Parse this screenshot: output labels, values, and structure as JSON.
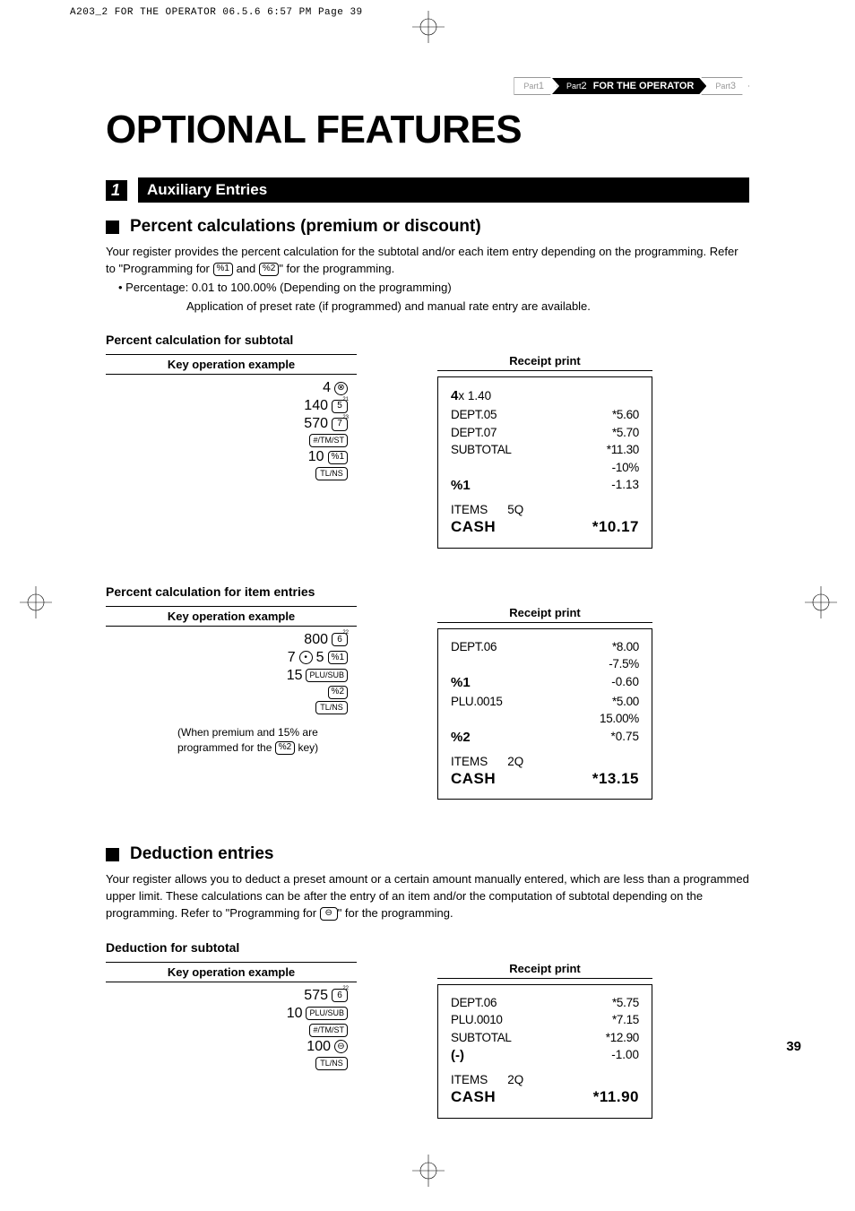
{
  "slug": "A203_2 FOR THE OPERATOR  06.5.6 6:57 PM  Page 39",
  "breadcrumb": {
    "p1": {
      "prefix": "Part",
      "num": "1"
    },
    "p2": {
      "prefix": "Part",
      "num": "2",
      "title": "FOR THE OPERATOR"
    },
    "p3": {
      "prefix": "Part",
      "num": "3"
    }
  },
  "page_title": "OPTIONAL FEATURES",
  "section": {
    "num": "1",
    "title": "Auxiliary Entries"
  },
  "sub1": {
    "heading": "Percent calculations (premium or discount)",
    "body1": "Your register provides the percent calculation for the subtotal and/or each item entry depending on the programming.  Refer to \"Programming for ",
    "body1_mid": " and ",
    "body1_end": "\" for the programming.",
    "bullet": "• Percentage: 0.01 to 100.00% (Depending on the programming)",
    "bullet_sub": "Application of preset rate (if programmed) and manual rate entry are available."
  },
  "labels": {
    "key_op": "Key operation example",
    "receipt": "Receipt print"
  },
  "keys": {
    "pct1": "%1",
    "pct2": "%2",
    "tmst": "#/TM/ST",
    "tlns": "TL/NS",
    "plusub": "PLU/SUB",
    "minus": "⊖",
    "mult": "⊗",
    "dot": "•",
    "d5": "5",
    "d5_sup": "21",
    "d7": "7",
    "d7_sup": "23",
    "d6": "6",
    "d6_sup": "22"
  },
  "ex1": {
    "title": "Percent calculation for subtotal",
    "ops": [
      {
        "num": "4",
        "key_type": "round",
        "key": "mult"
      },
      {
        "num": "140",
        "key_type": "digit",
        "key": "d5",
        "sup": "d5_sup"
      },
      {
        "num": "570",
        "key_type": "digit",
        "key": "d7",
        "sup": "d7_sup"
      },
      {
        "num": "",
        "key_type": "big",
        "key": "tmst"
      },
      {
        "num": "10",
        "key_type": "small",
        "key": "pct1"
      },
      {
        "num": "",
        "key_type": "big",
        "key": "tlns"
      }
    ],
    "receipt": {
      "r0_l": "4",
      "r0_m": "x 1.40",
      "r1_l": "DEPT.05",
      "r1_r": "*5.60",
      "r2_l": "DEPT.07",
      "r2_r": "*5.70",
      "r3_l": "SUBTOTAL",
      "r3_r": "*11.30",
      "r4_r": "-10%",
      "r5_l": "%1",
      "r5_r": "-1.13",
      "items_l": "ITEMS",
      "items_r": "5Q",
      "cash_l": "CASH",
      "cash_r": "*10.17"
    }
  },
  "ex2": {
    "title": "Percent calculation for item entries",
    "ops": [
      {
        "num": "800",
        "key_type": "digit",
        "key": "d6",
        "sup": "d6_sup"
      },
      {
        "num": "7",
        "dot": true,
        "num2": "5",
        "key_type": "small",
        "key": "pct1"
      },
      {
        "num": "15",
        "key_type": "big",
        "key": "plusub"
      },
      {
        "num": "",
        "key_type": "small",
        "key": "pct2"
      },
      {
        "num": "",
        "key_type": "big",
        "key": "tlns"
      }
    ],
    "note1": "(When premium and 15% are",
    "note2_a": "programmed for the ",
    "note2_b": " key)",
    "receipt": {
      "r1_l": "DEPT.06",
      "r1_r": "*8.00",
      "r2_r": "-7.5%",
      "r3_l": "%1",
      "r3_r": "-0.60",
      "r4_l": "PLU.0015",
      "r4_r": "*5.00",
      "r5_r": "15.00%",
      "r6_l": "%2",
      "r6_r": "*0.75",
      "items_l": "ITEMS",
      "items_r": "2Q",
      "cash_l": "CASH",
      "cash_r": "*13.15"
    }
  },
  "sub2": {
    "heading": "Deduction entries",
    "body1": "Your register allows you to deduct a preset amount or a certain amount manually entered, which are less than a programmed upper limit.  These calculations can be after the entry of an item and/or the computation of subtotal depending on the programming.  Refer to \"Programming for ",
    "body1_end": "\" for the programming."
  },
  "ex3": {
    "title": "Deduction for subtotal",
    "ops": [
      {
        "num": "575",
        "key_type": "digit",
        "key": "d6",
        "sup": "d6_sup"
      },
      {
        "num": "10",
        "key_type": "big",
        "key": "plusub"
      },
      {
        "num": "",
        "key_type": "big",
        "key": "tmst"
      },
      {
        "num": "100",
        "key_type": "round",
        "key": "minus"
      },
      {
        "num": "",
        "key_type": "big",
        "key": "tlns"
      }
    ],
    "receipt": {
      "r1_l": "DEPT.06",
      "r1_r": "*5.75",
      "r2_l": "PLU.0010",
      "r2_r": "*7.15",
      "r3_l": "SUBTOTAL",
      "r3_r": "*12.90",
      "r4_l": "(-)",
      "r4_r": "-1.00",
      "items_l": "ITEMS",
      "items_r": "2Q",
      "cash_l": "CASH",
      "cash_r": "*11.90"
    }
  },
  "page_num": "39"
}
